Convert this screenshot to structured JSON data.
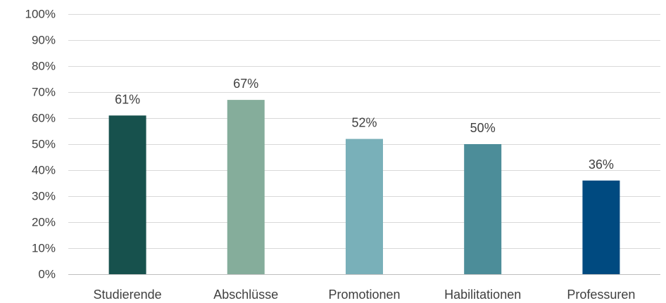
{
  "chart_data": {
    "type": "bar",
    "title": "",
    "xlabel": "",
    "ylabel": "",
    "categories": [
      "Studierende",
      "Abschlüsse",
      "Promotionen",
      "Habilitationen",
      "Professuren"
    ],
    "values": [
      61,
      67,
      52,
      50,
      36
    ],
    "data_labels": [
      "61%",
      "67%",
      "52%",
      "50%",
      "36%"
    ],
    "colors": [
      "#17514d",
      "#85ad9b",
      "#79b0b9",
      "#4c8d99",
      "#004a80"
    ],
    "ylim": [
      0,
      100
    ],
    "ytick_values": [
      0,
      10,
      20,
      30,
      40,
      50,
      60,
      70,
      80,
      90,
      100
    ],
    "ytick_labels": [
      "0%",
      "10%",
      "20%",
      "30%",
      "40%",
      "50%",
      "60%",
      "70%",
      "80%",
      "90%",
      "100%"
    ],
    "grid": true,
    "legend": "none"
  }
}
